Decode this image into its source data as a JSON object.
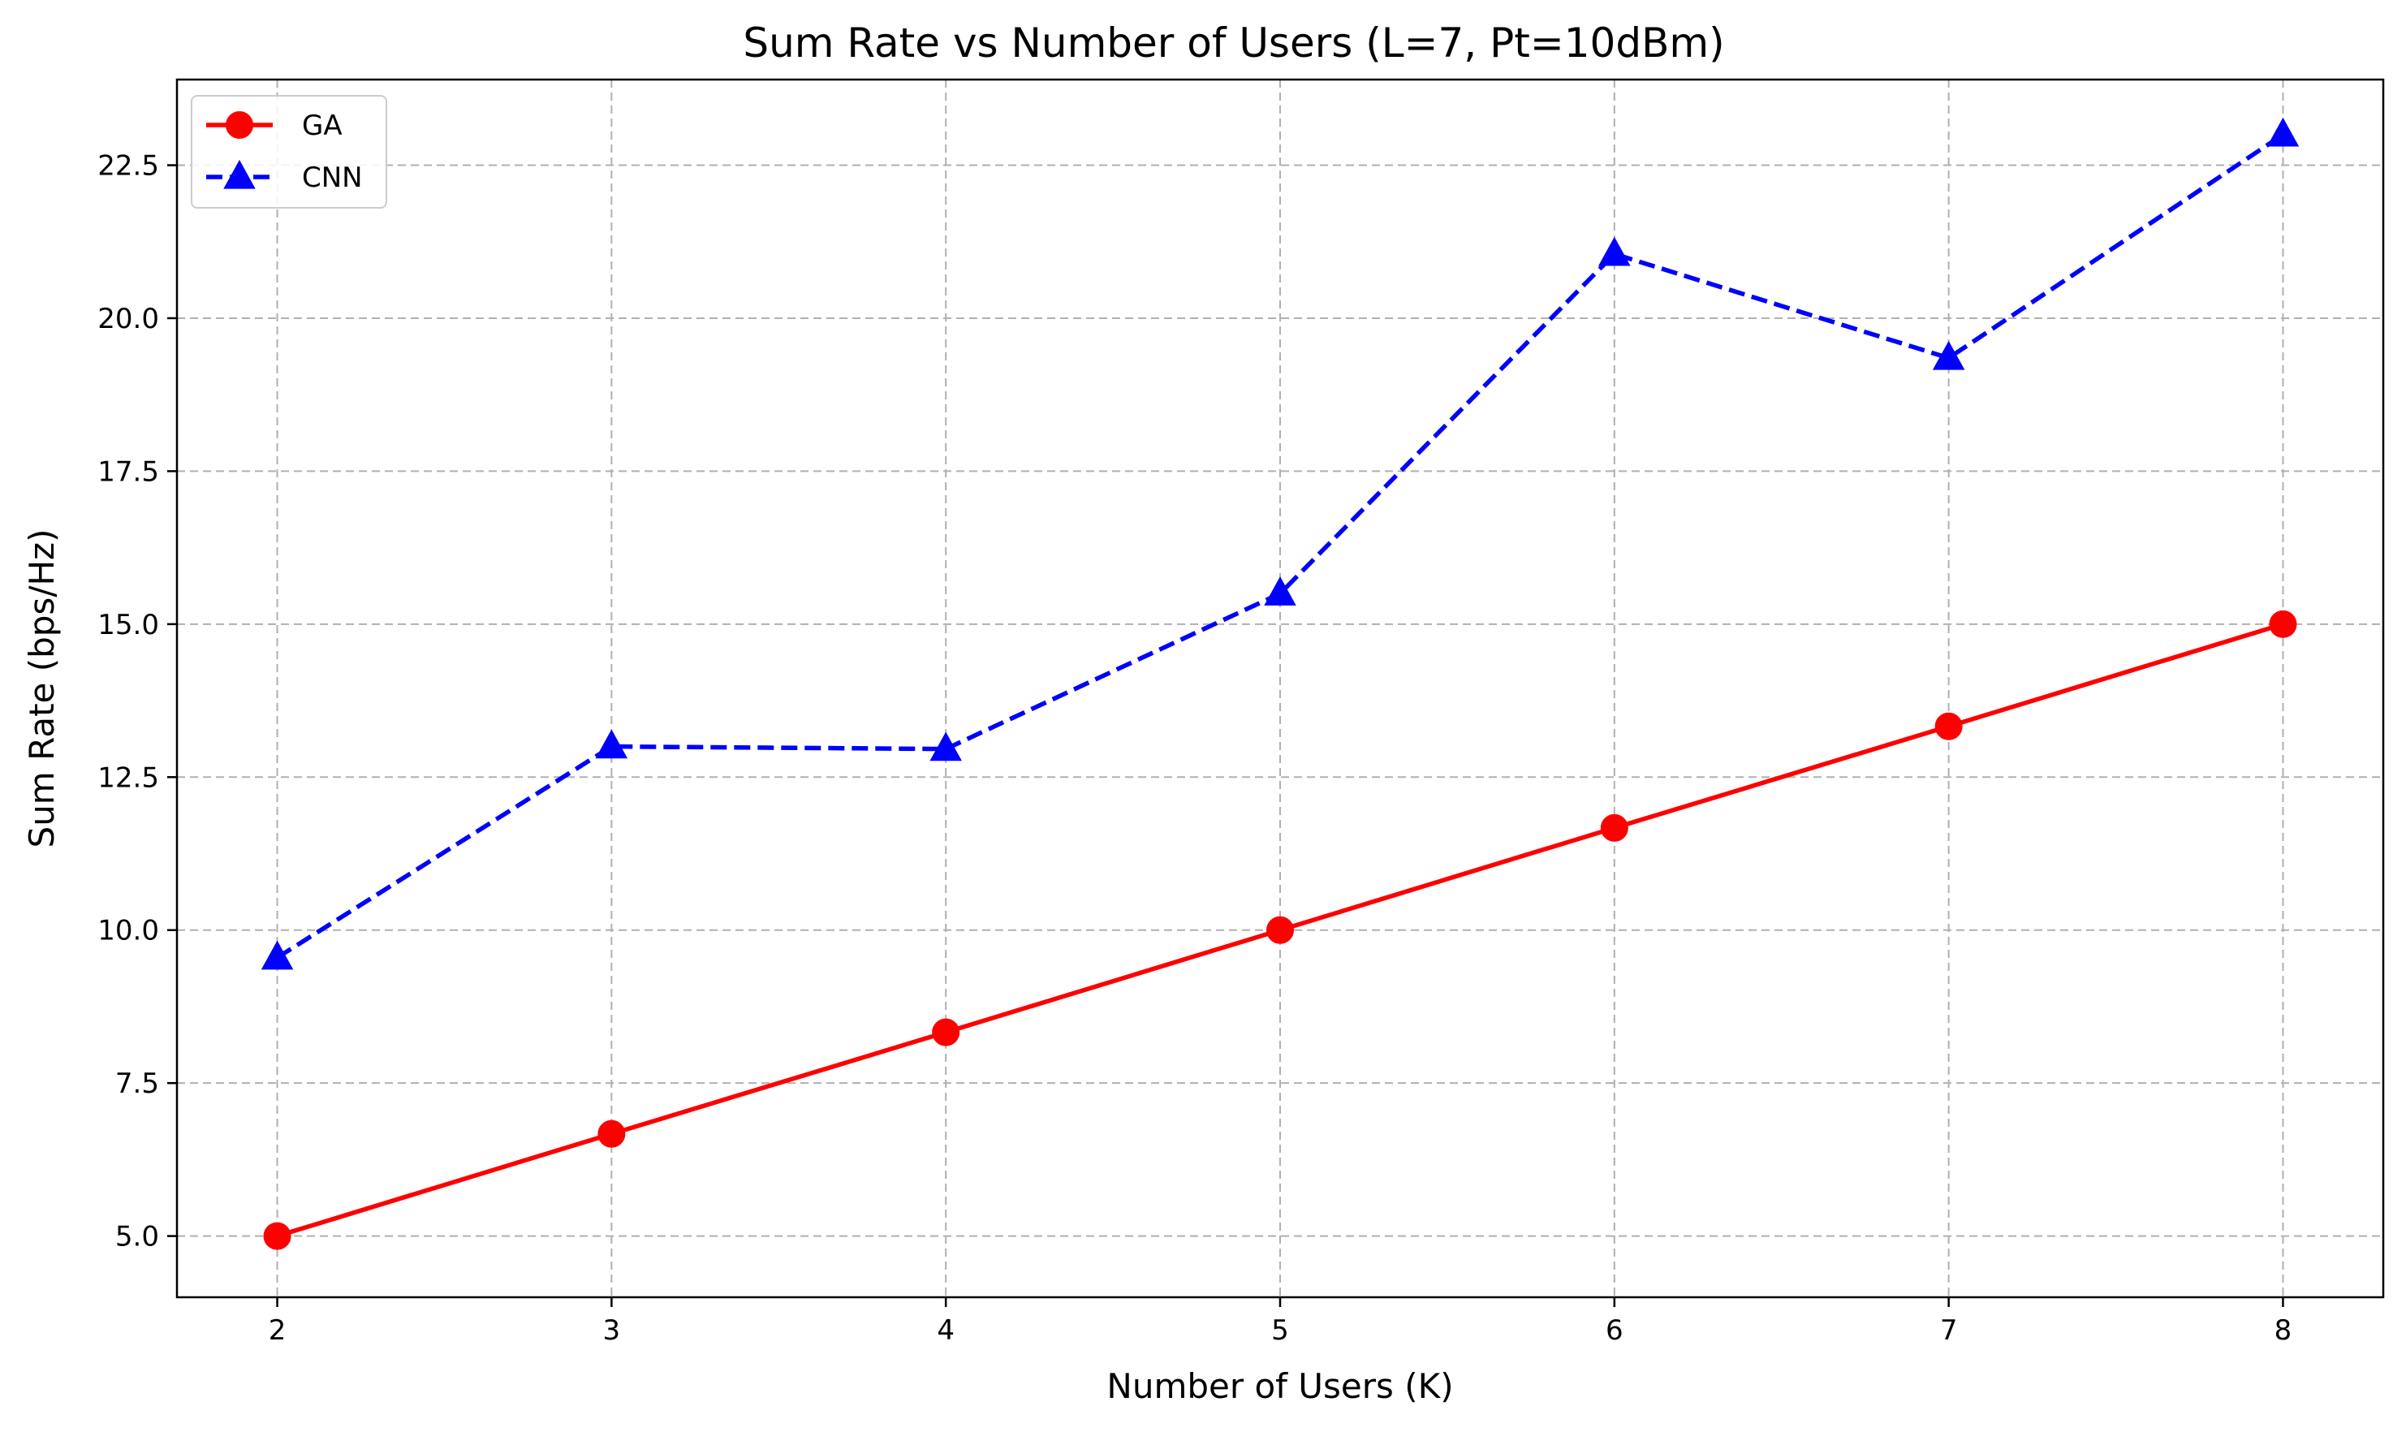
{
  "chart_data": {
    "type": "line",
    "title": "Sum Rate vs Number of Users (L=7, Pt=10dBm)",
    "xlabel": "Number of Users (K)",
    "ylabel": "Sum Rate (bps/Hz)",
    "x": [
      2,
      3,
      4,
      5,
      6,
      7,
      8
    ],
    "xlim": [
      1.7,
      8.3
    ],
    "ylim": [
      4.0,
      23.9
    ],
    "xticks": [
      "2",
      "3",
      "4",
      "5",
      "6",
      "7",
      "8"
    ],
    "yticks": [
      "5.0",
      "7.5",
      "10.0",
      "12.5",
      "15.0",
      "17.5",
      "20.0",
      "22.5"
    ],
    "ytick_values": [
      5.0,
      7.5,
      10.0,
      12.5,
      15.0,
      17.5,
      20.0,
      22.5
    ],
    "grid": true,
    "legend_position": "top-left",
    "series": [
      {
        "name": "GA",
        "values": [
          5.0,
          6.67,
          8.33,
          10.0,
          11.67,
          13.33,
          15.0
        ],
        "color": "#ff0000",
        "line_style": "solid",
        "marker": "circle"
      },
      {
        "name": "CNN",
        "values": [
          9.55,
          13.0,
          12.96,
          15.5,
          21.05,
          19.35,
          23.0
        ],
        "color": "#0000ff",
        "line_style": "dashed",
        "marker": "triangle"
      }
    ]
  }
}
